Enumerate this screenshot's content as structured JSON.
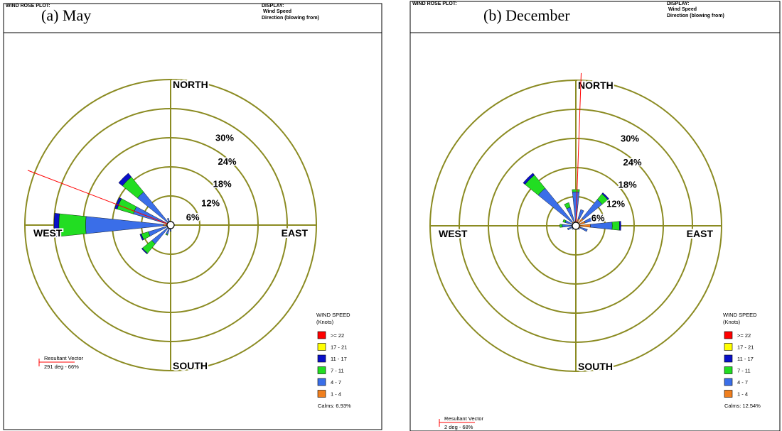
{
  "chart_data": [
    {
      "type": "windrose",
      "plot_label": "WIND ROSE PLOT:",
      "display_label": "DISPLAY:",
      "display_lines": [
        "Wind Speed",
        "Direction (blowing from)"
      ],
      "title": "(a)  May",
      "axis_labels": [
        "NORTH",
        "EAST",
        "SOUTH",
        "WEST"
      ],
      "rlim": [
        0,
        30
      ],
      "rticks": [
        {
          "value": 6,
          "label": "6%"
        },
        {
          "value": 12,
          "label": "12%"
        },
        {
          "value": 18,
          "label": "18%"
        },
        {
          "value": 24,
          "label": "24%"
        },
        {
          "value": 30,
          "label": "30%"
        }
      ],
      "categories": [
        null,
        null,
        null,
        null,
        null,
        null,
        null,
        null,
        null,
        null,
        null,
        null,
        null,
        null,
        null,
        null
      ],
      "legend_title": "WIND SPEED",
      "legend_subtitle": "(Knots)",
      "series": [
        {
          "name": ">= 22",
          "color": "#ff0000",
          "values": [
            0,
            0,
            0,
            0,
            0,
            0,
            0,
            0,
            0,
            0,
            0,
            0,
            0,
            0,
            0,
            0
          ]
        },
        {
          "name": "17 - 21",
          "color": "#ffff00",
          "values": [
            0,
            0,
            0,
            0,
            0,
            0,
            0,
            0,
            0,
            0,
            0,
            0,
            0,
            0,
            0,
            0
          ]
        },
        {
          "name": "11 - 17",
          "color": "#0a10c8",
          "values": [
            0,
            0,
            0,
            0,
            0,
            0,
            0,
            0,
            0,
            0,
            0.2,
            0.3,
            1,
            0.5,
            1,
            0
          ]
        },
        {
          "name": "7 - 11",
          "color": "#22dd22",
          "values": [
            0,
            0,
            0,
            0,
            0,
            0,
            0,
            0,
            0,
            0.2,
            2.5,
            1.5,
            5.5,
            3.5,
            4,
            0
          ]
        },
        {
          "name": "4 - 7",
          "color": "#3a6ee8",
          "values": [
            0.3,
            0.2,
            0.2,
            0.1,
            0.2,
            0.1,
            0.2,
            0.3,
            0.8,
            1.5,
            4.5,
            4,
            16,
            7,
            8,
            1
          ]
        },
        {
          "name": "1 - 4",
          "color": "#f07f1e",
          "values": [
            0.5,
            0.3,
            0.3,
            0.2,
            0.3,
            0.2,
            0.3,
            0.4,
            0.5,
            0.5,
            0.5,
            0.8,
            1.5,
            1,
            0.8,
            0.5
          ]
        }
      ],
      "calms_label": "Calms: 6.93%",
      "resultant": {
        "title": "Resultant Vector",
        "label": "291 deg - 66%",
        "direction": 291
      }
    },
    {
      "type": "windrose",
      "plot_label": "WIND ROSE PLOT:",
      "display_label": "DISPLAY:",
      "display_lines": [
        "Wind Speed",
        "Direction (blowing from)"
      ],
      "title": "(b)  December",
      "axis_labels": [
        "NORTH",
        "EAST",
        "SOUTH",
        "WEST"
      ],
      "rlim": [
        0,
        30
      ],
      "rticks": [
        {
          "value": 6,
          "label": "6%"
        },
        {
          "value": 12,
          "label": "12%"
        },
        {
          "value": 18,
          "label": "18%"
        },
        {
          "value": 24,
          "label": "24%"
        },
        {
          "value": 30,
          "label": "30%"
        }
      ],
      "categories": [
        null,
        null,
        null,
        null,
        null,
        null,
        null,
        null,
        null,
        null,
        null,
        null,
        null,
        null,
        null,
        null
      ],
      "legend_title": "WIND SPEED",
      "legend_subtitle": "(Knots)",
      "series": [
        {
          "name": ">= 22",
          "color": "#ff0000",
          "values": [
            0,
            0,
            0,
            0,
            0,
            0,
            0,
            0,
            0,
            0,
            0,
            0,
            0,
            0,
            0,
            0
          ]
        },
        {
          "name": "17 - 21",
          "color": "#ffff00",
          "values": [
            0,
            0,
            0,
            0,
            0,
            0,
            0,
            0,
            0,
            0,
            0,
            0,
            0,
            0,
            0,
            0
          ]
        },
        {
          "name": "11 - 17",
          "color": "#0a10c8",
          "values": [
            0,
            0,
            0.3,
            0,
            0.3,
            0,
            0,
            0,
            0,
            0,
            0,
            0,
            0,
            0,
            0.5,
            0
          ]
        },
        {
          "name": "7 - 11",
          "color": "#22dd22",
          "values": [
            0.5,
            0,
            1.5,
            0.3,
            1.5,
            0,
            0,
            0,
            0,
            0,
            0,
            0,
            0.5,
            0.5,
            3.5,
            1
          ]
        },
        {
          "name": "4 - 7",
          "color": "#3a6ee8",
          "values": [
            6.5,
            2,
            5,
            2,
            4.5,
            1.5,
            0.5,
            0.3,
            0.2,
            0.2,
            0.5,
            1,
            2,
            1.5,
            9,
            3
          ]
        },
        {
          "name": "1 - 4",
          "color": "#f07f1e",
          "values": [
            0.5,
            1.5,
            2,
            2,
            3,
            1,
            0.5,
            0.5,
            0.3,
            0.3,
            0.5,
            0.8,
            0.8,
            0.8,
            1,
            1
          ]
        }
      ],
      "calms_label": "Calms: 12.54%",
      "resultant": {
        "title": "Resultant Vector",
        "label": "2 deg - 68%",
        "direction": 2
      }
    }
  ]
}
